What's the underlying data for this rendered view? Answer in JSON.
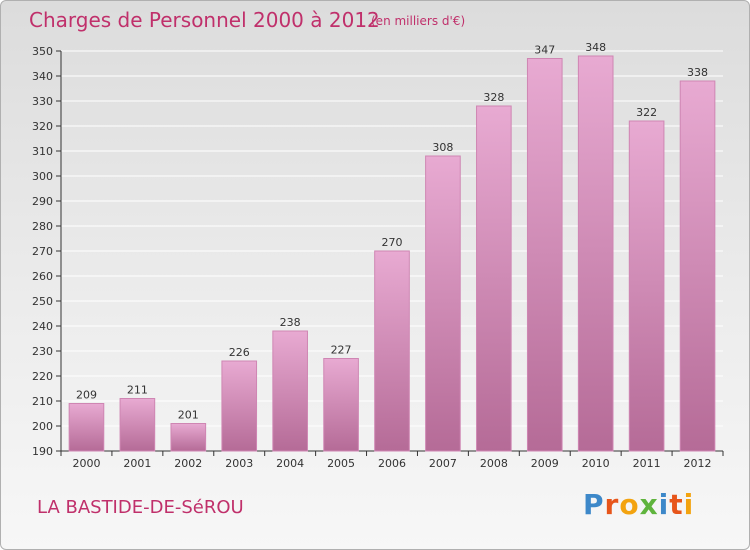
{
  "header": {
    "title": "Charges de Personnel 2000 à 2012",
    "unit": "(en milliers d'€)"
  },
  "footer": {
    "commune": "LA BASTIDE-DE-SéROU",
    "logo": "Proxiti",
    "logo_colors": [
      "#3d88c9",
      "#e7551a",
      "#f3a30f",
      "#5fb43d",
      "#3d88c9",
      "#e7551a",
      "#f3a30f"
    ]
  },
  "colors": {
    "bar_top": "#e8aad2",
    "bar_bottom": "#b56b97",
    "bar_stroke": "#cf86b3",
    "grid": "#ffffff",
    "axis": "#333333"
  },
  "chart_data": {
    "type": "bar",
    "title": "Charges de Personnel 2000 à 2012",
    "subtitle": "(en milliers d'€)",
    "categories": [
      "2000",
      "2001",
      "2002",
      "2003",
      "2004",
      "2005",
      "2006",
      "2007",
      "2008",
      "2009",
      "2010",
      "2011",
      "2012"
    ],
    "values": [
      209,
      211,
      201,
      226,
      238,
      227,
      270,
      308,
      328,
      347,
      348,
      322,
      338
    ],
    "ylim": [
      190,
      350
    ],
    "yticks": [
      190,
      200,
      210,
      220,
      230,
      240,
      250,
      260,
      270,
      280,
      290,
      300,
      310,
      320,
      330,
      340,
      350
    ],
    "grid": true,
    "data_labels": true
  }
}
